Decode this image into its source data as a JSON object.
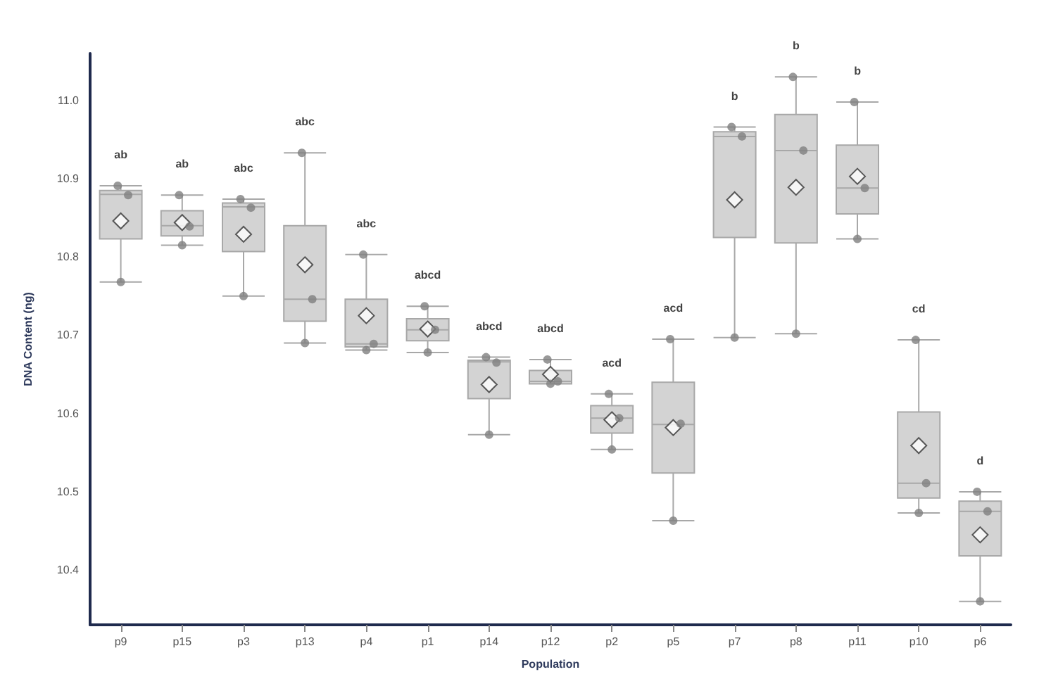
{
  "chart_data": {
    "type": "box",
    "xlabel": "Population",
    "ylabel": "DNA Content (ng)",
    "categories": [
      "p9",
      "p15",
      "p3",
      "p13",
      "p4",
      "p1",
      "p14",
      "p12",
      "p2",
      "p5",
      "p7",
      "p8",
      "p11",
      "p10",
      "p6"
    ],
    "ylim": [
      10.33,
      11.06
    ],
    "yticks": [
      10.4,
      10.5,
      10.6,
      10.7,
      10.8,
      10.9,
      {
        "value": 11,
        "label": "11.0"
      }
    ],
    "grid": false,
    "series": [
      {
        "color": "#d3d3d3",
        "boxes": [
          {
            "low": 10.768,
            "q1": 10.823,
            "median": 10.88,
            "q3": 10.885,
            "high": 10.891,
            "mean": 10.846
          },
          {
            "low": 10.815,
            "q1": 10.827,
            "median": 10.84,
            "q3": 10.859,
            "high": 10.879,
            "mean": 10.844
          },
          {
            "low": 10.75,
            "q1": 10.807,
            "median": 10.864,
            "q3": 10.869,
            "high": 10.874,
            "mean": 10.829
          },
          {
            "low": 10.69,
            "q1": 10.718,
            "median": 10.746,
            "q3": 10.84,
            "high": 10.933,
            "mean": 10.79
          },
          {
            "low": 10.681,
            "q1": 10.685,
            "median": 10.689,
            "q3": 10.746,
            "high": 10.803,
            "mean": 10.725
          },
          {
            "low": 10.678,
            "q1": 10.693,
            "median": 10.707,
            "q3": 10.721,
            "high": 10.737,
            "mean": 10.708
          },
          {
            "low": 10.573,
            "q1": 10.619,
            "median": 10.666,
            "q3": 10.668,
            "high": 10.672,
            "mean": 10.637
          },
          {
            "low": 10.638,
            "q1": 10.638,
            "median": 10.641,
            "q3": 10.655,
            "high": 10.669,
            "mean": 10.65
          },
          {
            "low": 10.554,
            "q1": 10.575,
            "median": 10.594,
            "q3": 10.61,
            "high": 10.625,
            "mean": 10.592
          },
          {
            "low": 10.463,
            "q1": 10.524,
            "median": 10.586,
            "q3": 10.64,
            "high": 10.695,
            "mean": 10.582
          },
          {
            "low": 10.697,
            "q1": 10.825,
            "median": 10.954,
            "q3": 10.96,
            "high": 10.966,
            "mean": 10.873
          },
          {
            "low": 10.702,
            "q1": 10.818,
            "median": 10.936,
            "q3": 10.982,
            "high": 11.03,
            "mean": 10.889
          },
          {
            "low": 10.823,
            "q1": 10.855,
            "median": 10.888,
            "q3": 10.943,
            "high": 10.998,
            "mean": 10.903
          },
          {
            "low": 10.473,
            "q1": 10.492,
            "median": 10.511,
            "q3": 10.602,
            "high": 10.694,
            "mean": 10.559
          },
          {
            "low": 10.36,
            "q1": 10.418,
            "median": 10.475,
            "q3": 10.488,
            "high": 10.5,
            "mean": 10.445
          }
        ]
      },
      {
        "type": "scatter",
        "color": "#808080",
        "x": [
          "p9",
          "p9",
          "p9",
          "p15",
          "p15",
          "p15",
          "p3",
          "p3",
          "p3",
          "p13",
          "p13",
          "p13",
          "p4",
          "p4",
          "p4",
          "p1",
          "p1",
          "p1",
          "p14",
          "p14",
          "p14",
          "p12",
          "p12",
          "p12",
          "p2",
          "p2",
          "p2",
          "p5",
          "p5",
          "p5",
          "p7",
          "p7",
          "p7",
          "p8",
          "p8",
          "p8",
          "p11",
          "p11",
          "p11",
          "p10",
          "p10",
          "p10",
          "p6",
          "p6",
          "p6"
        ],
        "values": [
          10.891,
          10.879,
          10.768,
          10.879,
          10.839,
          10.815,
          10.874,
          10.863,
          10.75,
          10.933,
          10.746,
          10.69,
          10.803,
          10.689,
          10.681,
          10.737,
          10.707,
          10.678,
          10.672,
          10.665,
          10.573,
          10.669,
          10.641,
          10.638,
          10.625,
          10.594,
          10.554,
          10.695,
          10.587,
          10.463,
          10.966,
          10.954,
          10.697,
          11.03,
          10.936,
          10.702,
          10.998,
          10.888,
          10.823,
          10.694,
          10.511,
          10.473,
          10.5,
          10.475,
          10.36
        ]
      }
    ],
    "annotations": [
      "ab",
      "ab",
      "abc",
      "abc",
      "abc",
      "abcd",
      "abcd",
      "abcd",
      "acd",
      "acd",
      "b",
      "b",
      "b",
      "cd",
      "d"
    ]
  }
}
